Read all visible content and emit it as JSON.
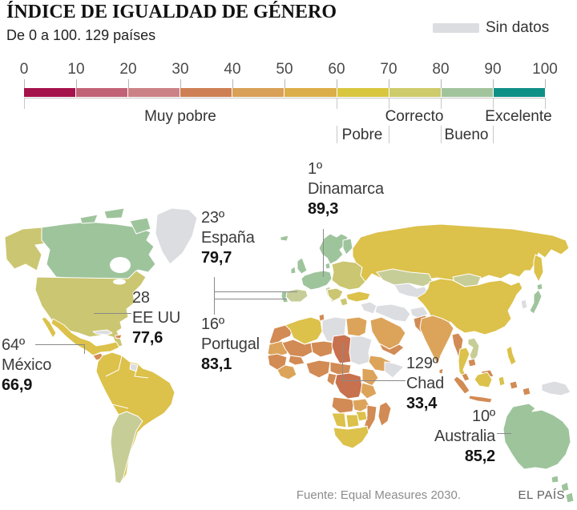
{
  "header": {
    "title": "ÍNDICE DE IGUALDAD DE GÉNERO",
    "subtitle": "De 0 a 100. 129 países",
    "no_data_label": "Sin datos"
  },
  "scale": {
    "ticks": [
      "0",
      "10",
      "20",
      "30",
      "40",
      "50",
      "60",
      "70",
      "80",
      "90",
      "100"
    ],
    "segments": [
      {
        "range": "0-10",
        "color": "#a5134c"
      },
      {
        "range": "10-20",
        "color": "#c26277"
      },
      {
        "range": "20-30",
        "color": "#cb8287"
      },
      {
        "range": "30-40",
        "color": "#ce8054"
      },
      {
        "range": "40-50",
        "color": "#d9a057"
      },
      {
        "range": "50-60",
        "color": "#dcae49"
      },
      {
        "range": "60-70",
        "color": "#d8c73e"
      },
      {
        "range": "70-80",
        "color": "#cdcb6b"
      },
      {
        "range": "80-90",
        "color": "#a2c49c"
      },
      {
        "range": "90-100",
        "color": "#0f9086"
      }
    ],
    "category_labels": [
      {
        "label": "Muy pobre",
        "range": [
          0,
          60
        ]
      },
      {
        "label": "Pobre",
        "range": [
          60,
          70
        ]
      },
      {
        "label": "Correcto",
        "range": [
          70,
          80
        ]
      },
      {
        "label": "Bueno",
        "range": [
          80,
          90
        ]
      },
      {
        "label": "Excelente",
        "range": [
          90,
          100
        ]
      }
    ]
  },
  "map": {
    "palette": {
      "yellow": "#dcc14b",
      "khaki": "#cbc671",
      "pale_sage": "#c7cd97",
      "sage": "#9ec49c",
      "light_orange": "#dca45b",
      "orange": "#d28b54",
      "terracotta": "#c8714f",
      "no_data": "#dcdde1"
    }
  },
  "annotations": [
    {
      "id": "denmark",
      "rank": "1º",
      "name": "Dinamarca",
      "value": "89,3"
    },
    {
      "id": "spain",
      "rank": "23º",
      "name": "España",
      "value": "79,7"
    },
    {
      "id": "portugal",
      "rank": "16º",
      "name": "Portugal",
      "value": "83,1"
    },
    {
      "id": "usa",
      "rank": "28",
      "name": "EE UU",
      "value": "77,6"
    },
    {
      "id": "mexico",
      "rank": "64º",
      "name": "México",
      "value": "66,9"
    },
    {
      "id": "chad",
      "rank": "129º",
      "name": "Chad",
      "value": "33,4"
    },
    {
      "id": "australia",
      "rank": "10º",
      "name": "Australia",
      "value": "85,2"
    }
  ],
  "footer": {
    "source": "Fuente: Equal Measures 2030.",
    "credit": "EL PAÍS"
  },
  "chart_data": {
    "type": "heatmap",
    "subtype": "choropleth-world-map",
    "title": "ÍNDICE DE IGUALDAD DE GÉNERO",
    "subtitle": "De 0 a 100. 129 países",
    "scale_domain": [
      0,
      100
    ],
    "bins": [
      {
        "range": [
          0,
          60
        ],
        "label": "Muy pobre"
      },
      {
        "range": [
          60,
          70
        ],
        "label": "Pobre"
      },
      {
        "range": [
          70,
          80
        ],
        "label": "Correcto"
      },
      {
        "range": [
          80,
          90
        ],
        "label": "Bueno"
      },
      {
        "range": [
          90,
          100
        ],
        "label": "Excelente"
      }
    ],
    "points": [
      {
        "rank": 1,
        "country": "Dinamarca",
        "value": 89.3
      },
      {
        "rank": 10,
        "country": "Australia",
        "value": 85.2
      },
      {
        "rank": 16,
        "country": "Portugal",
        "value": 83.1
      },
      {
        "rank": 23,
        "country": "España",
        "value": 79.7
      },
      {
        "rank": 28,
        "country": "EE UU",
        "value": 77.6
      },
      {
        "rank": 64,
        "country": "México",
        "value": 66.9
      },
      {
        "rank": 129,
        "country": "Chad",
        "value": 33.4
      }
    ],
    "source": "Equal Measures 2030"
  }
}
